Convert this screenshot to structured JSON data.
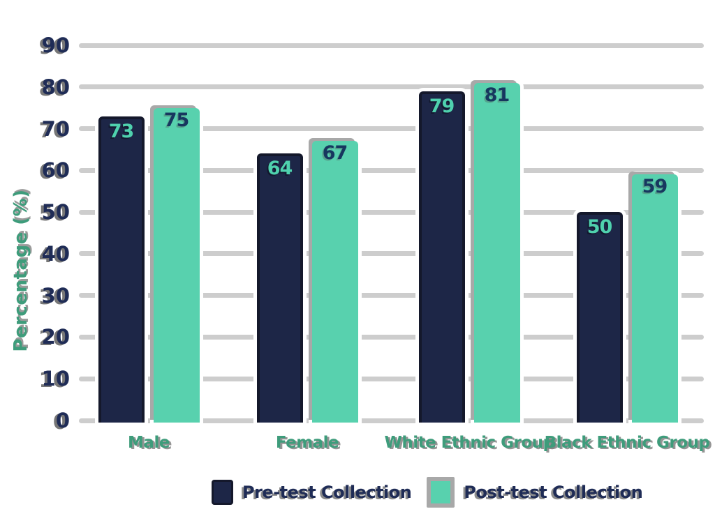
{
  "chart_data": {
    "type": "bar",
    "title": "",
    "categories": [
      "Male",
      "Female",
      "White Ethnic Group",
      "Black Ethnic Group"
    ],
    "series": [
      {
        "name": "Pre-test Collection",
        "color": "#1D2647",
        "values": [
          73,
          64,
          79,
          50
        ]
      },
      {
        "name": "Post-test Collection",
        "color": "#58D1AE",
        "values": [
          75,
          67,
          81,
          59
        ]
      }
    ],
    "xlabel": "",
    "ylabel": "Percentage (%)",
    "ylim": [
      0,
      90
    ],
    "ytick_step": 10,
    "yticks": [
      0,
      10,
      20,
      30,
      40,
      50,
      60,
      70,
      80,
      90
    ],
    "grid": true,
    "legend_position": "bottom",
    "value_labels": true
  },
  "colors": {
    "background": "#FFFFFF",
    "pre_test_bar": "#1D2647",
    "pre_test_bar_border": "#14182B",
    "post_test_bar": "#58D1AE",
    "post_test_bar_shadow": "#A8A8A8",
    "gridline": "#CDCDCD",
    "y_tick_label": "#1F2C56",
    "axis_label_green": "#3E9C7B",
    "value_on_pre_bar": "#4FD1AE",
    "value_on_post_bar": "#17375F",
    "legend_text": "#1F2C56"
  }
}
